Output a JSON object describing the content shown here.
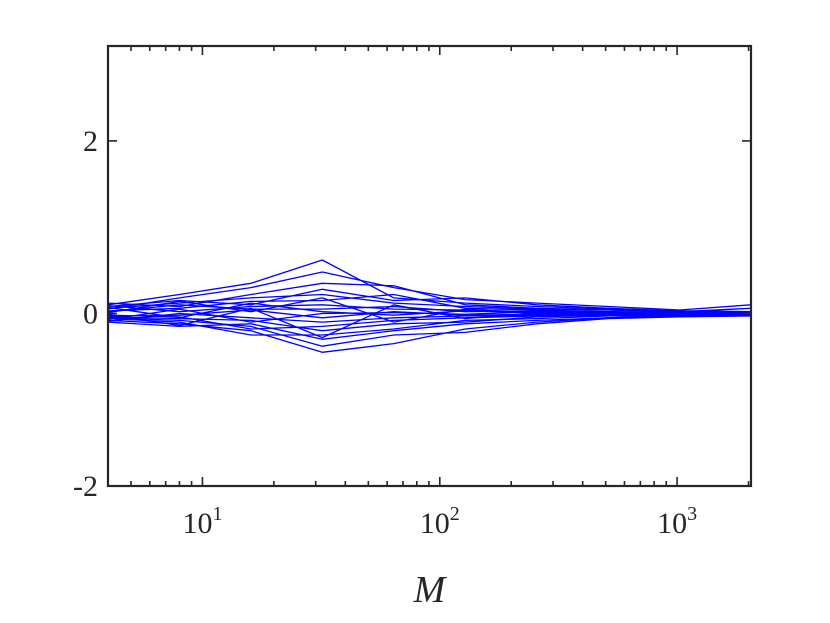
{
  "chart_data": {
    "type": "line",
    "title": "",
    "xlabel": "M",
    "ylabel": "",
    "x_scale": "log",
    "xlim": [
      4,
      2048
    ],
    "ylim": [
      -2,
      3.1
    ],
    "grid": false,
    "legend": "none",
    "line_color": "#0000ff",
    "x_ticks": [
      {
        "base": "10",
        "exp": "1",
        "value": 10
      },
      {
        "base": "10",
        "exp": "2",
        "value": 100
      },
      {
        "base": "10",
        "exp": "3",
        "value": 1000
      }
    ],
    "y_ticks": [
      {
        "label": "-2",
        "value": -2
      },
      {
        "label": "0",
        "value": 0
      },
      {
        "label": "2",
        "value": 2
      }
    ],
    "x": [
      4,
      8,
      16,
      32,
      64,
      128,
      256,
      512,
      1024,
      2048
    ],
    "series": [
      {
        "values": [
          0.1,
          0.22,
          0.35,
          0.62,
          0.18,
          0.12,
          0.08,
          0.05,
          0.03,
          0.02
        ]
      },
      {
        "values": [
          -0.08,
          -0.12,
          -0.2,
          -0.45,
          -0.35,
          -0.18,
          -0.1,
          -0.05,
          -0.03,
          -0.02
        ]
      },
      {
        "values": [
          0.05,
          0.18,
          0.3,
          0.48,
          0.3,
          0.16,
          0.12,
          0.08,
          0.04,
          0.1
        ]
      },
      {
        "values": [
          -0.05,
          -0.08,
          -0.15,
          -0.38,
          -0.25,
          -0.22,
          -0.12,
          -0.06,
          -0.04,
          -0.03
        ]
      },
      {
        "values": [
          0.12,
          0.08,
          0.22,
          0.35,
          0.32,
          0.1,
          0.06,
          0.04,
          0.02,
          0.06
        ]
      },
      {
        "values": [
          -0.1,
          -0.15,
          -0.12,
          -0.3,
          -0.2,
          -0.12,
          -0.08,
          -0.05,
          -0.02,
          -0.01
        ]
      },
      {
        "values": [
          0.08,
          0.15,
          0.1,
          0.28,
          0.15,
          0.18,
          0.1,
          0.06,
          0.03,
          0.02
        ]
      },
      {
        "values": [
          -0.06,
          -0.1,
          -0.25,
          -0.25,
          -0.18,
          -0.08,
          -0.06,
          -0.03,
          -0.02,
          0.0
        ]
      },
      {
        "values": [
          0.06,
          0.12,
          0.18,
          0.22,
          0.12,
          0.08,
          0.05,
          0.04,
          0.02,
          0.01
        ]
      },
      {
        "values": [
          -0.04,
          -0.06,
          -0.08,
          -0.2,
          -0.12,
          -0.1,
          -0.04,
          -0.02,
          -0.01,
          -0.01
        ]
      },
      {
        "values": [
          0.03,
          0.06,
          0.14,
          0.15,
          0.22,
          0.06,
          0.04,
          0.02,
          0.01,
          0.0
        ]
      },
      {
        "values": [
          -0.02,
          -0.04,
          -0.18,
          -0.15,
          -0.08,
          -0.05,
          -0.03,
          -0.02,
          0.0,
          0.0
        ]
      },
      {
        "values": [
          0.09,
          0.02,
          0.08,
          0.1,
          0.05,
          0.04,
          0.02,
          0.01,
          0.0,
          0.01
        ]
      },
      {
        "values": [
          -0.09,
          0.0,
          -0.05,
          -0.1,
          -0.05,
          -0.03,
          -0.02,
          -0.01,
          0.0,
          -0.02
        ]
      },
      {
        "values": [
          0.02,
          0.1,
          0.05,
          0.05,
          0.08,
          0.02,
          0.03,
          0.02,
          0.01,
          0.0
        ]
      },
      {
        "values": [
          -0.03,
          -0.02,
          0.04,
          -0.05,
          0.02,
          -0.02,
          -0.01,
          0.0,
          0.01,
          0.0
        ]
      },
      {
        "values": [
          0.07,
          -0.05,
          0.12,
          0.02,
          -0.02,
          0.03,
          0.01,
          0.01,
          0.0,
          0.0
        ]
      },
      {
        "values": [
          -0.07,
          0.05,
          -0.1,
          0.0,
          0.01,
          -0.01,
          0.02,
          0.0,
          -0.01,
          0.0
        ]
      },
      {
        "values": [
          0.01,
          0.14,
          0.02,
          0.18,
          -0.1,
          0.05,
          0.0,
          0.02,
          0.0,
          0.0
        ]
      },
      {
        "values": [
          -0.01,
          -0.14,
          0.06,
          -0.28,
          0.1,
          -0.06,
          0.01,
          -0.01,
          0.0,
          0.0
        ]
      }
    ]
  }
}
